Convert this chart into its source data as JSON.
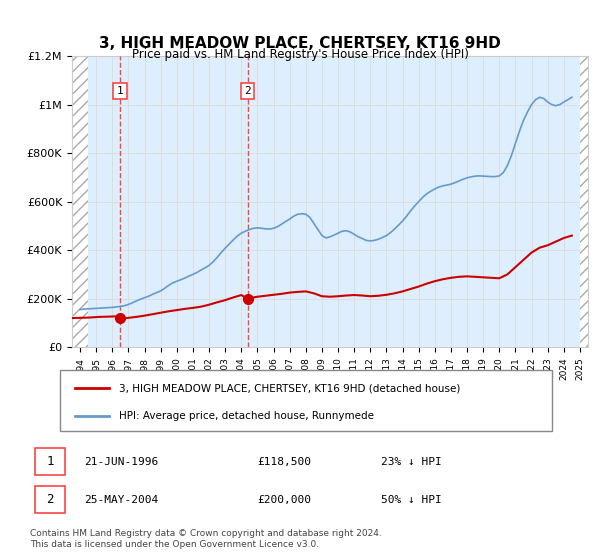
{
  "title": "3, HIGH MEADOW PLACE, CHERTSEY, KT16 9HD",
  "subtitle": "Price paid vs. HM Land Registry's House Price Index (HPI)",
  "legend_line1": "3, HIGH MEADOW PLACE, CHERTSEY, KT16 9HD (detached house)",
  "legend_line2": "HPI: Average price, detached house, Runnymede",
  "footnote": "Contains HM Land Registry data © Crown copyright and database right 2024.\nThis data is licensed under the Open Government Licence v3.0.",
  "transactions": [
    {
      "num": 1,
      "date": "21-JUN-1996",
      "price": "£118,500",
      "hpi": "23% ↓ HPI"
    },
    {
      "num": 2,
      "date": "25-MAY-2004",
      "price": "£200,000",
      "hpi": "50% ↓ HPI"
    }
  ],
  "transaction_years": [
    1996.47,
    2004.39
  ],
  "transaction_prices": [
    118500,
    200000
  ],
  "ylim": [
    0,
    1200000
  ],
  "xlim": [
    1993.5,
    2025.5
  ],
  "hatch_end": 1994.5,
  "red_line_color": "#cc0000",
  "blue_line_color": "#6699cc",
  "dashed_line_color": "#ff4444",
  "background_color": "#ddeeff",
  "hatch_color": "#bbbbbb",
  "grid_color": "#dddddd",
  "hpi_data_x": [
    1994,
    1994.25,
    1994.5,
    1994.75,
    1995,
    1995.25,
    1995.5,
    1995.75,
    1996,
    1996.25,
    1996.5,
    1996.75,
    1997,
    1997.25,
    1997.5,
    1997.75,
    1998,
    1998.25,
    1998.5,
    1998.75,
    1999,
    1999.25,
    1999.5,
    1999.75,
    2000,
    2000.25,
    2000.5,
    2000.75,
    2001,
    2001.25,
    2001.5,
    2001.75,
    2002,
    2002.25,
    2002.5,
    2002.75,
    2003,
    2003.25,
    2003.5,
    2003.75,
    2004,
    2004.25,
    2004.5,
    2004.75,
    2005,
    2005.25,
    2005.5,
    2005.75,
    2006,
    2006.25,
    2006.5,
    2006.75,
    2007,
    2007.25,
    2007.5,
    2007.75,
    2008,
    2008.25,
    2008.5,
    2008.75,
    2009,
    2009.25,
    2009.5,
    2009.75,
    2010,
    2010.25,
    2010.5,
    2010.75,
    2011,
    2011.25,
    2011.5,
    2011.75,
    2012,
    2012.25,
    2012.5,
    2012.75,
    2013,
    2013.25,
    2013.5,
    2013.75,
    2014,
    2014.25,
    2014.5,
    2014.75,
    2015,
    2015.25,
    2015.5,
    2015.75,
    2016,
    2016.25,
    2016.5,
    2016.75,
    2017,
    2017.25,
    2017.5,
    2017.75,
    2018,
    2018.25,
    2018.5,
    2018.75,
    2019,
    2019.25,
    2019.5,
    2019.75,
    2020,
    2020.25,
    2020.5,
    2020.75,
    2021,
    2021.25,
    2021.5,
    2021.75,
    2022,
    2022.25,
    2022.5,
    2022.75,
    2023,
    2023.25,
    2023.5,
    2023.75,
    2024,
    2024.25,
    2024.5
  ],
  "hpi_data_y": [
    155000,
    157000,
    158000,
    159000,
    160000,
    161000,
    162000,
    163000,
    164000,
    166000,
    168000,
    171000,
    176000,
    183000,
    191000,
    198000,
    204000,
    210000,
    218000,
    225000,
    232000,
    243000,
    255000,
    265000,
    272000,
    278000,
    285000,
    293000,
    300000,
    308000,
    318000,
    327000,
    337000,
    352000,
    370000,
    390000,
    408000,
    425000,
    442000,
    458000,
    470000,
    478000,
    485000,
    490000,
    492000,
    490000,
    488000,
    487000,
    490000,
    497000,
    507000,
    518000,
    528000,
    540000,
    548000,
    550000,
    548000,
    535000,
    510000,
    485000,
    460000,
    450000,
    455000,
    462000,
    470000,
    478000,
    480000,
    475000,
    465000,
    455000,
    448000,
    440000,
    438000,
    440000,
    445000,
    452000,
    460000,
    472000,
    487000,
    503000,
    520000,
    540000,
    562000,
    582000,
    600000,
    618000,
    632000,
    643000,
    652000,
    660000,
    665000,
    668000,
    672000,
    678000,
    685000,
    692000,
    698000,
    702000,
    705000,
    706000,
    705000,
    704000,
    703000,
    703000,
    706000,
    720000,
    748000,
    790000,
    840000,
    890000,
    935000,
    970000,
    1000000,
    1020000,
    1030000,
    1025000,
    1010000,
    1000000,
    995000,
    1000000,
    1010000,
    1020000,
    1030000
  ],
  "red_line_x": [
    1993.5,
    1994,
    1994.5,
    1994.75,
    1995,
    1995.25,
    1995.5,
    1995.75,
    1996,
    1996.25,
    1996.47,
    1996.75,
    1997,
    1997.5,
    1998,
    1998.5,
    1999,
    1999.5,
    2000,
    2000.5,
    2001,
    2001.5,
    2002,
    2002.5,
    2003,
    2003.5,
    2004,
    2004.39,
    2004.75,
    2005,
    2005.5,
    2006,
    2006.5,
    2007,
    2007.5,
    2008,
    2008.5,
    2009,
    2009.5,
    2010,
    2010.5,
    2011,
    2011.5,
    2012,
    2012.5,
    2013,
    2013.5,
    2014,
    2014.5,
    2015,
    2015.5,
    2016,
    2016.5,
    2017,
    2017.5,
    2018,
    2018.5,
    2019,
    2019.5,
    2020,
    2020.5,
    2021,
    2021.5,
    2022,
    2022.5,
    2023,
    2023.5,
    2024,
    2024.5
  ],
  "red_line_y": [
    120000,
    121000,
    122000,
    123000,
    124000,
    125000,
    125500,
    126000,
    126500,
    127000,
    118500,
    119000,
    121000,
    125000,
    130000,
    136000,
    142000,
    148000,
    153000,
    158000,
    162000,
    167000,
    175000,
    185000,
    194000,
    205000,
    215000,
    200000,
    205000,
    208000,
    212000,
    216000,
    220000,
    225000,
    228000,
    230000,
    222000,
    210000,
    208000,
    210000,
    213000,
    215000,
    213000,
    210000,
    212000,
    216000,
    222000,
    230000,
    240000,
    250000,
    262000,
    272000,
    280000,
    286000,
    290000,
    292000,
    290000,
    288000,
    286000,
    284000,
    300000,
    330000,
    360000,
    390000,
    410000,
    420000,
    435000,
    450000,
    460000
  ]
}
